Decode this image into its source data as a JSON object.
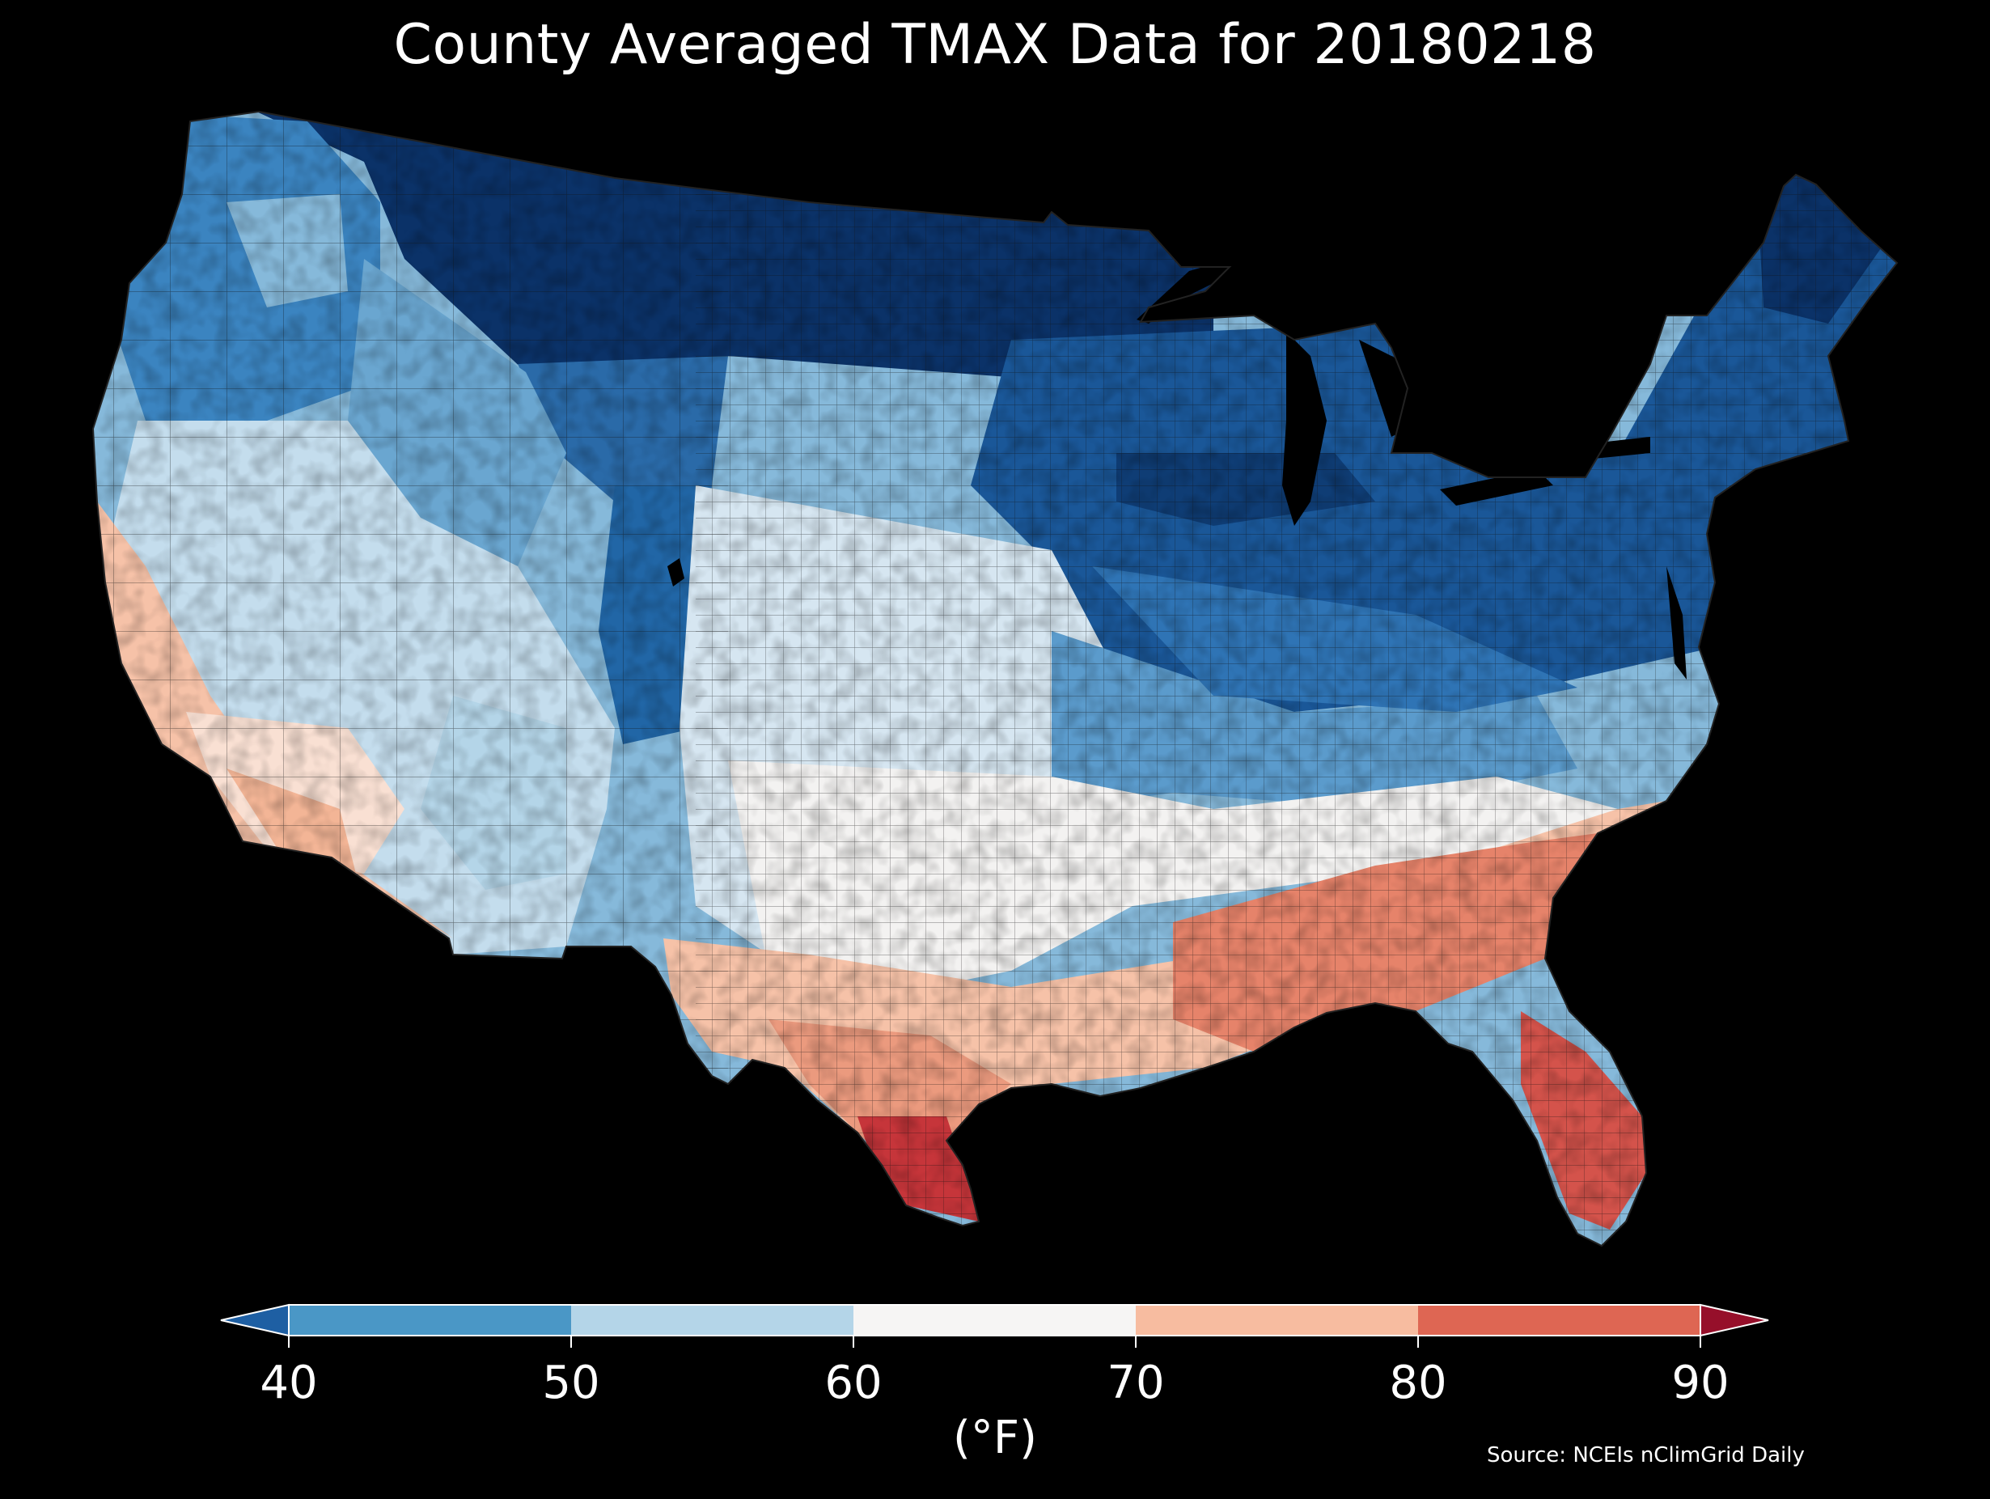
{
  "title": "County Averaged TMAX Data for 20180218",
  "source": "Source: NCEIs nClimGrid Daily",
  "colorbar": {
    "unit": "(°F)",
    "ticks": [
      "40",
      "50",
      "60",
      "70",
      "80",
      "90"
    ],
    "bins": [
      {
        "range": "<40",
        "color": "#1e5fa3"
      },
      {
        "range": "40-50",
        "color": "#4a97c6"
      },
      {
        "range": "50-60",
        "color": "#b4d5e8"
      },
      {
        "range": "60-70",
        "color": "#f6f5f4"
      },
      {
        "range": "70-80",
        "color": "#f7bca0"
      },
      {
        "range": "80-90",
        "color": "#de6653"
      },
      {
        "range": ">90",
        "color": "#960f2a"
      }
    ]
  },
  "map": {
    "region": "Contiguous United States",
    "unit": "county",
    "variable": "TMAX",
    "date": "20180218",
    "background": "#000000",
    "palette": {
      "very_cold": "#0b3268",
      "cold": "#1a5798",
      "cool": "#3b84c0",
      "mild_cool": "#86b9da",
      "near_60": "#d6e6f1",
      "neutral": "#f3f2f1",
      "warm": "#f6c2a8",
      "warmer": "#e6836a",
      "hot": "#c6353a"
    },
    "regions": [
      {
        "name": "northern-plains-band",
        "value_f": 32
      },
      {
        "name": "great-lakes-northeast",
        "value_f": 36
      },
      {
        "name": "pacific-northwest",
        "value_f": 45
      },
      {
        "name": "great-basin-rockies",
        "value_f": 52
      },
      {
        "name": "central-plains-midwest",
        "value_f": 57
      },
      {
        "name": "california-southwest",
        "value_f": 67
      },
      {
        "name": "texas-south",
        "value_f": 74
      },
      {
        "name": "gulf-coast-southeast",
        "value_f": 80
      },
      {
        "name": "south-texas-florida",
        "value_f": 86
      }
    ]
  }
}
